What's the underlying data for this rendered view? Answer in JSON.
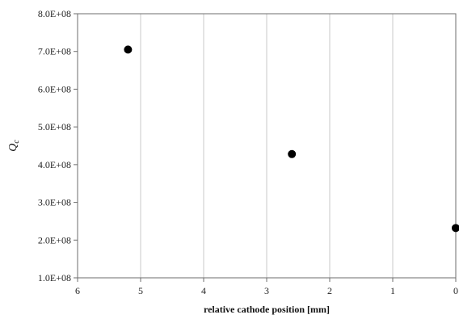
{
  "chart_data": {
    "type": "scatter",
    "xlabel": "relative cathode position [mm]",
    "ylabel": "Q_c",
    "xlim": [
      6,
      0
    ],
    "ylim": [
      100000000,
      800000000
    ],
    "x_reversed": true,
    "grid": "vertical",
    "xticks": [
      6,
      5,
      4,
      3,
      2,
      1,
      0
    ],
    "xtick_labels": [
      "6",
      "5",
      "4",
      "3",
      "2",
      "1",
      "0"
    ],
    "yticks": [
      100000000,
      200000000,
      300000000,
      400000000,
      500000000,
      600000000,
      700000000,
      800000000
    ],
    "ytick_labels": [
      "1.0E+08",
      "2.0E+08",
      "3.0E+08",
      "4.0E+08",
      "5.0E+08",
      "6.0E+08",
      "7.0E+08",
      "8.0E+08"
    ],
    "series": [
      {
        "points": [
          {
            "x": 5.2,
            "y": 705000000
          },
          {
            "x": 2.6,
            "y": 428000000
          },
          {
            "x": 0.0,
            "y": 232000000
          }
        ],
        "color": "#000000",
        "marker": "circle"
      }
    ]
  }
}
